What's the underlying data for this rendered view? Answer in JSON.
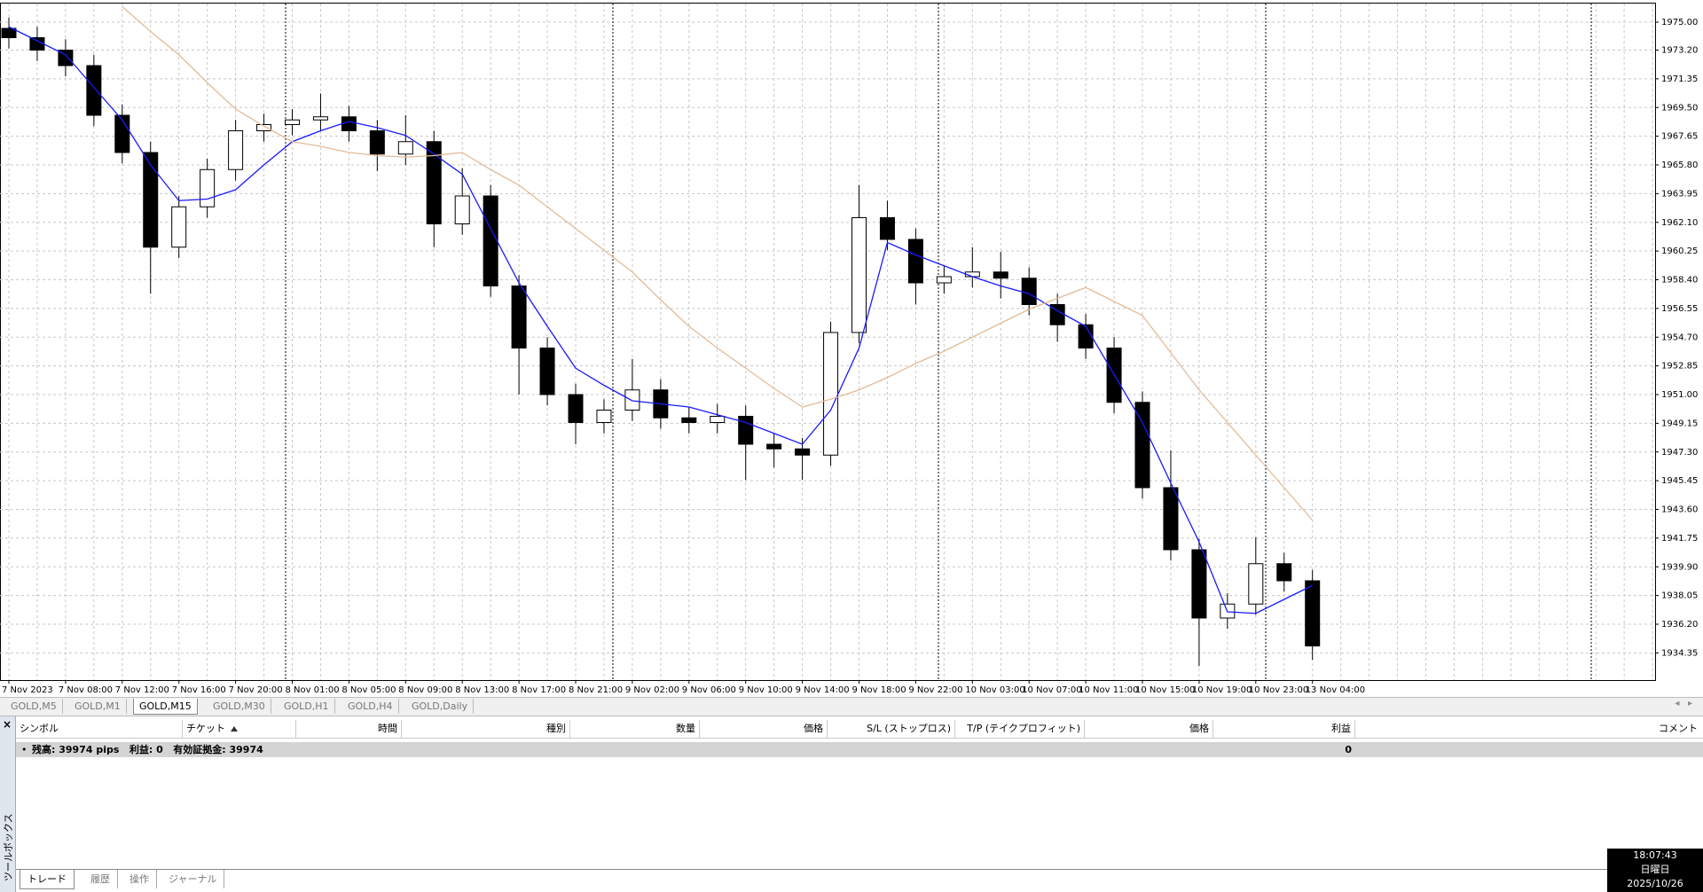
{
  "chart_data": {
    "type": "candlestick",
    "grid": true,
    "categories": [
      "7 Nov 2023",
      null,
      "7 Nov 08:00",
      null,
      "7 Nov 12:00",
      null,
      "7 Nov 16:00",
      null,
      "7 Nov 20:00",
      null,
      "8 Nov 01:00",
      null,
      "8 Nov 05:00",
      null,
      "8 Nov 09:00",
      null,
      "8 Nov 13:00",
      null,
      "8 Nov 17:00",
      null,
      "8 Nov 21:00",
      null,
      "9 Nov 02:00",
      null,
      "9 Nov 06:00",
      null,
      "9 Nov 10:00",
      null,
      "9 Nov 14:00",
      null,
      "9 Nov 18:00",
      null,
      "9 Nov 22:00",
      null,
      "10 Nov 03:00",
      null,
      "10 Nov 07:00",
      null,
      "10 Nov 11:00",
      null,
      "10 Nov 15:00",
      null,
      "10 Nov 19:00",
      null,
      "10 Nov 23:00",
      null,
      "13 Nov 04:00"
    ],
    "open": [
      1974.6,
      1974.0,
      1973.2,
      1972.2,
      1969.0,
      1966.6,
      1960.5,
      1963.1,
      1965.5,
      1968.0,
      1968.4,
      1968.7,
      1968.9,
      1968.0,
      1966.5,
      1967.3,
      1962.0,
      1963.8,
      1958.0,
      1954.0,
      1951.0,
      1949.2,
      1950.0,
      1951.3,
      1949.5,
      1949.2,
      1949.6,
      1947.8,
      1947.5,
      1947.1,
      1955.0,
      1962.4,
      1961.0,
      1958.2,
      1958.6,
      1958.9,
      1958.5,
      1956.8,
      1955.5,
      1954.0,
      1950.5,
      1945.0,
      1941.0,
      1936.6,
      1937.5,
      1940.1,
      1939.0
    ],
    "high": [
      1975.3,
      1974.7,
      1973.9,
      1972.9,
      1969.7,
      1967.3,
      1963.8,
      1966.2,
      1968.7,
      1969.1,
      1969.4,
      1970.4,
      1969.6,
      1968.7,
      1969.0,
      1968.0,
      1965.6,
      1964.5,
      1958.7,
      1954.7,
      1951.7,
      1950.7,
      1953.3,
      1952.0,
      1950.2,
      1950.4,
      1950.3,
      1948.5,
      1948.2,
      1955.7,
      1964.5,
      1963.5,
      1961.7,
      1959.3,
      1960.5,
      1960.2,
      1959.2,
      1957.5,
      1956.2,
      1954.7,
      1951.2,
      1947.4,
      1941.7,
      1938.2,
      1941.8,
      1940.8,
      1939.7
    ],
    "low": [
      1973.3,
      1972.5,
      1971.5,
      1968.3,
      1965.9,
      1957.5,
      1959.8,
      1962.4,
      1964.8,
      1967.3,
      1967.7,
      1968.0,
      1967.3,
      1965.4,
      1965.8,
      1960.5,
      1961.3,
      1957.3,
      1951.0,
      1950.3,
      1947.8,
      1948.5,
      1949.3,
      1948.8,
      1948.5,
      1948.5,
      1945.5,
      1946.3,
      1945.5,
      1946.4,
      1954.3,
      1960.3,
      1956.8,
      1957.5,
      1957.9,
      1957.2,
      1956.1,
      1954.4,
      1953.3,
      1949.8,
      1944.3,
      1940.3,
      1933.5,
      1935.9,
      1936.8,
      1938.3,
      1933.9
    ],
    "close": [
      1974.0,
      1973.2,
      1972.2,
      1969.0,
      1966.6,
      1960.5,
      1963.1,
      1965.5,
      1968.0,
      1968.4,
      1968.7,
      1968.9,
      1968.0,
      1966.5,
      1967.3,
      1962.0,
      1963.8,
      1958.0,
      1954.0,
      1951.0,
      1949.2,
      1950.0,
      1951.3,
      1949.5,
      1949.2,
      1949.6,
      1947.8,
      1947.5,
      1947.1,
      1955.0,
      1962.4,
      1961.0,
      1958.2,
      1958.6,
      1958.9,
      1958.5,
      1956.8,
      1955.5,
      1954.0,
      1950.5,
      1945.0,
      1941.0,
      1936.6,
      1937.5,
      1940.1,
      1939.0,
      1934.8
    ],
    "bull_color": "#ffffff",
    "bear_color": "#000000",
    "moving_averages": [
      {
        "color": "#1a1aff",
        "values": [
          1974.7,
          1973.8,
          1972.9,
          1970.8,
          1968.7,
          1965.8,
          1963.5,
          1963.6,
          1964.2,
          1965.8,
          1967.3,
          1968.0,
          1968.6,
          1968.2,
          1967.7,
          1966.5,
          1965.2,
          1961.7,
          1958.2,
          1955.4,
          1952.7,
          1951.6,
          1950.6,
          1950.4,
          1950.2,
          1949.7,
          1949.2,
          1948.5,
          1947.8,
          1950.0,
          1954.0,
          1960.8,
          1960.0,
          1959.3,
          1958.6,
          1958.0,
          1957.5,
          1956.4,
          1955.4,
          1952.3,
          1949.2,
          1945.3,
          1941.5,
          1937.0,
          1936.9,
          1937.8,
          1938.7
        ]
      },
      {
        "color": "#e2bb98",
        "values": [
          null,
          null,
          null,
          null,
          1976.0,
          1974.4,
          1972.9,
          1971.1,
          1969.4,
          1968.3,
          1967.3,
          1967.0,
          1966.6,
          1966.4,
          1966.3,
          1966.4,
          1966.6,
          1965.5,
          1964.5,
          1963.1,
          1961.7,
          1960.3,
          1958.9,
          1957.1,
          1955.4,
          1954.0,
          1952.7,
          1951.4,
          1950.2,
          1950.7,
          1951.3,
          1952.1,
          1953.0,
          1953.8,
          1954.7,
          1955.6,
          1956.5,
          1957.2,
          1957.9,
          1957.0,
          1956.1,
          1953.7,
          1951.3,
          1949.2,
          1947.1,
          1945.0,
          1942.9
        ]
      }
    ],
    "ylim": [
      1932.6,
      1976.2
    ],
    "yticks": [
      {
        "value": 1975,
        "label": "1975.00"
      },
      {
        "value": 1973.2,
        "label": "1973.20"
      },
      {
        "value": 1971.35,
        "label": "1971.35"
      },
      {
        "value": 1969.5,
        "label": "1969.50"
      },
      {
        "value": 1967.65,
        "label": "1967.65"
      },
      {
        "value": 1965.8,
        "label": "1965.80"
      },
      {
        "value": 1963.95,
        "label": "1963.95"
      },
      {
        "value": 1962.1,
        "label": "1962.10"
      },
      {
        "value": 1960.25,
        "label": "1960.25"
      },
      {
        "value": 1958.4,
        "label": "1958.40"
      },
      {
        "value": 1956.55,
        "label": "1956.55"
      },
      {
        "value": 1954.7,
        "label": "1954.70"
      },
      {
        "value": 1952.85,
        "label": "1952.85"
      },
      {
        "value": 1951,
        "label": "1951.00"
      },
      {
        "value": 1949.15,
        "label": "1949.15"
      },
      {
        "value": 1947.3,
        "label": "1947.30"
      },
      {
        "value": 1945.45,
        "label": "1945.45"
      },
      {
        "value": 1943.6,
        "label": "1943.60"
      },
      {
        "value": 1941.75,
        "label": "1941.75"
      },
      {
        "value": 1939.9,
        "label": "1939.90"
      },
      {
        "value": 1938.05,
        "label": "1938.05"
      },
      {
        "value": 1936.2,
        "label": "1936.20"
      },
      {
        "value": 1934.35,
        "label": "1934.35"
      }
    ]
  },
  "chart_tabs": [
    "GOLD,M5",
    "GOLD,M1",
    "GOLD,M15",
    "GOLD,M30",
    "GOLD,H1",
    "GOLD,H4",
    "GOLD,Daily"
  ],
  "toolbox": {
    "title": "ツールボックス",
    "columns": [
      "シンボル",
      "チケット",
      "時間",
      "種別",
      "数量",
      "価格",
      "S/L (ストップロス)",
      "T/P (テイクプロフィット)",
      "価格",
      "利益",
      "コメント"
    ],
    "balance_row": {
      "text": "残高: 39974 pips   利益: 0   有効証拠金: 39974",
      "profit": "0"
    },
    "tabs": [
      "トレード",
      "履歴",
      "操作",
      "ジャーナル"
    ]
  },
  "clock": {
    "time": "18:07:43",
    "day": "日曜日",
    "date": "2025/10/26"
  }
}
